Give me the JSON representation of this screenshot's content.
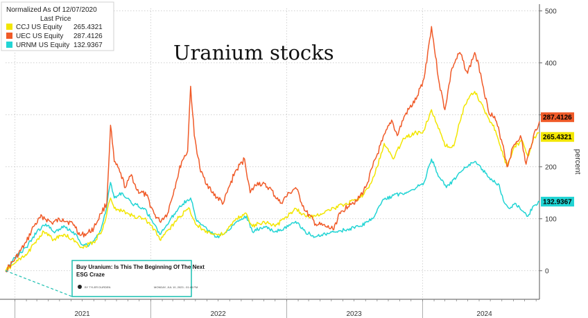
{
  "chart_data": {
    "type": "line",
    "title": "Uranium stocks",
    "legend": {
      "header": "Normalized As Of 12/07/2020",
      "subheader": "Last Price",
      "position": "top-left"
    },
    "ylabel": "percent",
    "ylim": [
      -55,
      505
    ],
    "yticks": [
      0,
      100,
      200,
      300,
      400,
      500
    ],
    "xlim": [
      "2020-12-07",
      "2024-11-10"
    ],
    "xticks": [
      {
        "label": "2021",
        "date": "2021-07-01"
      },
      {
        "label": "2022",
        "date": "2022-07-01"
      },
      {
        "label": "2023",
        "date": "2023-07-01"
      },
      {
        "label": "2024",
        "date": "2024-06-15"
      }
    ],
    "year_boundaries": [
      "2021-01-01",
      "2022-01-01",
      "2023-01-01",
      "2024-01-01"
    ],
    "grid": true,
    "series": [
      {
        "name": "UEC US Equity",
        "last_price": "287.4126",
        "color": "#f05a28",
        "points": [
          [
            "2020-12-07",
            0
          ],
          [
            "2021-01-01",
            22
          ],
          [
            "2021-02-01",
            55
          ],
          [
            "2021-02-20",
            85
          ],
          [
            "2021-03-15",
            105
          ],
          [
            "2021-04-10",
            92
          ],
          [
            "2021-05-10",
            100
          ],
          [
            "2021-06-10",
            88
          ],
          [
            "2021-06-25",
            68
          ],
          [
            "2021-07-15",
            72
          ],
          [
            "2021-08-01",
            82
          ],
          [
            "2021-08-20",
            110
          ],
          [
            "2021-09-05",
            130
          ],
          [
            "2021-09-15",
            280
          ],
          [
            "2021-09-25",
            210
          ],
          [
            "2021-10-10",
            190
          ],
          [
            "2021-10-25",
            160
          ],
          [
            "2021-11-10",
            185
          ],
          [
            "2021-11-25",
            155
          ],
          [
            "2021-12-20",
            145
          ],
          [
            "2022-01-10",
            110
          ],
          [
            "2022-01-25",
            95
          ],
          [
            "2022-02-15",
            110
          ],
          [
            "2022-03-10",
            170
          ],
          [
            "2022-03-25",
            210
          ],
          [
            "2022-04-10",
            230
          ],
          [
            "2022-04-18",
            355
          ],
          [
            "2022-04-28",
            260
          ],
          [
            "2022-05-15",
            190
          ],
          [
            "2022-06-15",
            150
          ],
          [
            "2022-07-15",
            130
          ],
          [
            "2022-08-15",
            190
          ],
          [
            "2022-09-10",
            215
          ],
          [
            "2022-09-25",
            150
          ],
          [
            "2022-10-15",
            170
          ],
          [
            "2022-11-15",
            160
          ],
          [
            "2022-12-15",
            130
          ],
          [
            "2023-01-10",
            150
          ],
          [
            "2023-01-25",
            160
          ],
          [
            "2023-02-20",
            115
          ],
          [
            "2023-03-20",
            90
          ],
          [
            "2023-04-15",
            85
          ],
          [
            "2023-05-05",
            80
          ],
          [
            "2023-05-25",
            110
          ],
          [
            "2023-06-20",
            130
          ],
          [
            "2023-07-10",
            135
          ],
          [
            "2023-08-01",
            160
          ],
          [
            "2023-08-20",
            200
          ],
          [
            "2023-09-15",
            250
          ],
          [
            "2023-10-10",
            290
          ],
          [
            "2023-10-25",
            260
          ],
          [
            "2023-11-15",
            300
          ],
          [
            "2023-12-15",
            330
          ],
          [
            "2024-01-05",
            370
          ],
          [
            "2024-01-25",
            470
          ],
          [
            "2024-02-15",
            360
          ],
          [
            "2024-03-01",
            310
          ],
          [
            "2024-03-20",
            390
          ],
          [
            "2024-04-10",
            420
          ],
          [
            "2024-05-01",
            380
          ],
          [
            "2024-05-20",
            420
          ],
          [
            "2024-06-05",
            380
          ],
          [
            "2024-06-25",
            310
          ],
          [
            "2024-07-15",
            290
          ],
          [
            "2024-08-05",
            240
          ],
          [
            "2024-08-15",
            200
          ],
          [
            "2024-09-01",
            240
          ],
          [
            "2024-09-20",
            260
          ],
          [
            "2024-10-05",
            205
          ],
          [
            "2024-10-25",
            260
          ],
          [
            "2024-11-10",
            287.41
          ]
        ]
      },
      {
        "name": "CCJ US Equity",
        "last_price": "265.4321",
        "color": "#f2e600",
        "points": [
          [
            "2020-12-07",
            0
          ],
          [
            "2021-01-01",
            15
          ],
          [
            "2021-02-01",
            30
          ],
          [
            "2021-03-01",
            60
          ],
          [
            "2021-03-20",
            75
          ],
          [
            "2021-04-15",
            60
          ],
          [
            "2021-05-15",
            70
          ],
          [
            "2021-06-15",
            55
          ],
          [
            "2021-07-01",
            45
          ],
          [
            "2021-08-01",
            55
          ],
          [
            "2021-08-25",
            80
          ],
          [
            "2021-09-15",
            140
          ],
          [
            "2021-09-25",
            120
          ],
          [
            "2021-10-15",
            115
          ],
          [
            "2021-11-15",
            105
          ],
          [
            "2021-12-15",
            100
          ],
          [
            "2022-01-10",
            80
          ],
          [
            "2022-01-25",
            60
          ],
          [
            "2022-02-20",
            80
          ],
          [
            "2022-03-20",
            105
          ],
          [
            "2022-04-15",
            120
          ],
          [
            "2022-05-01",
            90
          ],
          [
            "2022-05-20",
            80
          ],
          [
            "2022-06-20",
            70
          ],
          [
            "2022-07-15",
            70
          ],
          [
            "2022-08-20",
            100
          ],
          [
            "2022-09-15",
            110
          ],
          [
            "2022-10-01",
            85
          ],
          [
            "2022-11-01",
            95
          ],
          [
            "2022-12-01",
            85
          ],
          [
            "2023-01-10",
            110
          ],
          [
            "2023-01-25",
            120
          ],
          [
            "2023-02-20",
            105
          ],
          [
            "2023-03-20",
            105
          ],
          [
            "2023-04-15",
            115
          ],
          [
            "2023-05-10",
            120
          ],
          [
            "2023-06-10",
            130
          ],
          [
            "2023-07-10",
            135
          ],
          [
            "2023-08-10",
            160
          ],
          [
            "2023-09-01",
            200
          ],
          [
            "2023-09-20",
            245
          ],
          [
            "2023-10-15",
            215
          ],
          [
            "2023-11-10",
            255
          ],
          [
            "2023-12-10",
            265
          ],
          [
            "2024-01-01",
            265
          ],
          [
            "2024-01-25",
            310
          ],
          [
            "2024-02-10",
            280
          ],
          [
            "2024-03-01",
            240
          ],
          [
            "2024-03-25",
            240
          ],
          [
            "2024-04-15",
            300
          ],
          [
            "2024-05-01",
            330
          ],
          [
            "2024-05-20",
            345
          ],
          [
            "2024-06-05",
            325
          ],
          [
            "2024-06-25",
            295
          ],
          [
            "2024-07-15",
            270
          ],
          [
            "2024-08-05",
            220
          ],
          [
            "2024-08-15",
            200
          ],
          [
            "2024-09-05",
            240
          ],
          [
            "2024-09-25",
            250
          ],
          [
            "2024-10-10",
            220
          ],
          [
            "2024-10-25",
            255
          ],
          [
            "2024-11-10",
            265.43
          ]
        ]
      },
      {
        "name": "URNM US Equity",
        "last_price": "132.9367",
        "color": "#21d4d4",
        "points": [
          [
            "2020-12-07",
            0
          ],
          [
            "2021-01-01",
            25
          ],
          [
            "2021-02-01",
            45
          ],
          [
            "2021-03-01",
            75
          ],
          [
            "2021-03-25",
            90
          ],
          [
            "2021-04-15",
            75
          ],
          [
            "2021-05-15",
            85
          ],
          [
            "2021-06-15",
            70
          ],
          [
            "2021-07-01",
            50
          ],
          [
            "2021-07-20",
            50
          ],
          [
            "2021-08-15",
            70
          ],
          [
            "2021-09-01",
            110
          ],
          [
            "2021-09-15",
            170
          ],
          [
            "2021-09-25",
            140
          ],
          [
            "2021-10-15",
            150
          ],
          [
            "2021-11-10",
            130
          ],
          [
            "2021-12-15",
            120
          ],
          [
            "2022-01-10",
            90
          ],
          [
            "2022-01-25",
            70
          ],
          [
            "2022-02-20",
            95
          ],
          [
            "2022-03-20",
            125
          ],
          [
            "2022-04-18",
            140
          ],
          [
            "2022-05-05",
            95
          ],
          [
            "2022-06-01",
            80
          ],
          [
            "2022-06-25",
            65
          ],
          [
            "2022-07-15",
            70
          ],
          [
            "2022-08-20",
            95
          ],
          [
            "2022-09-15",
            105
          ],
          [
            "2022-10-01",
            75
          ],
          [
            "2022-11-01",
            85
          ],
          [
            "2022-12-01",
            75
          ],
          [
            "2023-01-05",
            85
          ],
          [
            "2023-01-25",
            95
          ],
          [
            "2023-02-20",
            75
          ],
          [
            "2023-03-20",
            65
          ],
          [
            "2023-04-15",
            70
          ],
          [
            "2023-05-15",
            75
          ],
          [
            "2023-06-15",
            80
          ],
          [
            "2023-07-15",
            85
          ],
          [
            "2023-08-20",
            100
          ],
          [
            "2023-09-15",
            135
          ],
          [
            "2023-10-15",
            145
          ],
          [
            "2023-11-15",
            150
          ],
          [
            "2023-12-15",
            160
          ],
          [
            "2024-01-05",
            170
          ],
          [
            "2024-01-25",
            215
          ],
          [
            "2024-02-15",
            180
          ],
          [
            "2024-03-05",
            160
          ],
          [
            "2024-04-01",
            180
          ],
          [
            "2024-04-20",
            195
          ],
          [
            "2024-05-20",
            210
          ],
          [
            "2024-06-10",
            195
          ],
          [
            "2024-07-01",
            175
          ],
          [
            "2024-07-25",
            165
          ],
          [
            "2024-08-05",
            135
          ],
          [
            "2024-08-20",
            120
          ],
          [
            "2024-09-05",
            130
          ],
          [
            "2024-09-25",
            115
          ],
          [
            "2024-10-10",
            105
          ],
          [
            "2024-10-25",
            125
          ],
          [
            "2024-11-10",
            132.94
          ]
        ]
      }
    ],
    "inset": {
      "title_line1": "Buy Uranium: Is This The Beginning Of The Next",
      "title_line2": "ESG Craze",
      "byline": "BY TYLER DURDEN",
      "date": "MONDAY, JUL 10, 2023 - 01:45 PM",
      "anchor_date": "2020-12-07",
      "anchor_value": 0,
      "border_color": "#19bfb0"
    }
  }
}
